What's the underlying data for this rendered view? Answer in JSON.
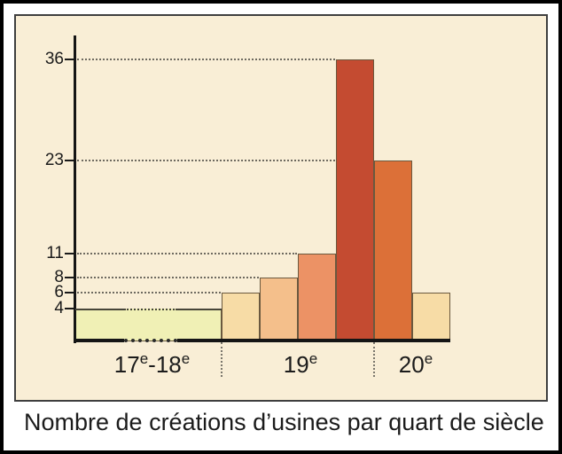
{
  "figure": {
    "caption": "Nombre de créations d’usines par quart de siècle"
  },
  "colors": {
    "panel_background": "#f9eed6",
    "panel_border": "#3f3f3f",
    "outer_border": "#000000",
    "axis": "#151515",
    "bar_border": "#6a593f",
    "guide_dots": "#6e6a60",
    "text": "#1b1b1b"
  },
  "chart_data": {
    "type": "bar",
    "title": "Nombre de créations d’usines par quart de siècle",
    "xlabel": "",
    "ylabel": "",
    "ylim": [
      0,
      40
    ],
    "y_ticks": [
      36,
      23,
      11,
      8,
      6,
      4
    ],
    "grid": "dotted leader lines from y-axis to first bar reaching each tick value",
    "legend": "none",
    "x_groups": [
      "17e-18e",
      "19e",
      "20e"
    ],
    "bars": [
      {
        "group": "17e-18e",
        "value": 4,
        "color": "#f0f0b5",
        "wide": true,
        "broken_axis": true
      },
      {
        "group": "19e",
        "value": 6,
        "color": "#f7dca6"
      },
      {
        "group": "19e",
        "value": 8,
        "color": "#f4bf8b"
      },
      {
        "group": "19e",
        "value": 11,
        "color": "#ec9265"
      },
      {
        "group": "19e",
        "value": 36,
        "color": "#c44b31"
      },
      {
        "group": "20e",
        "value": 23,
        "color": "#dc7038"
      },
      {
        "group": "20e",
        "value": 6,
        "color": "#f7dca6"
      }
    ],
    "x_axis": {
      "labels": [
        {
          "p1": "17",
          "s1": "e",
          "p2": "-18",
          "s2": "e"
        },
        {
          "p1": "19",
          "s1": "e"
        },
        {
          "p1": "20",
          "s1": "e"
        }
      ]
    }
  }
}
